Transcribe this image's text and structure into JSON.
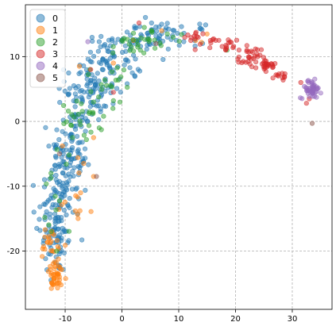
{
  "chart_data": {
    "type": "scatter",
    "title": "",
    "xlabel": "",
    "ylabel": "",
    "xlim": [
      -17,
      37
    ],
    "ylim": [
      -29,
      18
    ],
    "xticks": [
      -10,
      0,
      10,
      20,
      30
    ],
    "yticks": [
      -20,
      -10,
      0,
      10
    ],
    "grid": true,
    "grid_style": "dashed",
    "legend_position": "upper-left",
    "marker_alpha": 0.5,
    "series": [
      {
        "name": "0",
        "color": "#1f77b4",
        "clusters": [
          {
            "cx": -11.5,
            "cy": -15,
            "sx": 1.6,
            "sy": 4.5,
            "n": 120
          },
          {
            "cx": -9,
            "cy": -5,
            "sx": 1.8,
            "sy": 4,
            "n": 110
          },
          {
            "cx": -5.5,
            "cy": 5,
            "sx": 2.2,
            "sy": 2.5,
            "n": 90
          },
          {
            "cx": -1.5,
            "cy": 9.5,
            "sx": 2.5,
            "sy": 2,
            "n": 60
          },
          {
            "cx": 4.5,
            "cy": 13,
            "sx": 3,
            "sy": 1.2,
            "n": 55
          },
          {
            "cx": 11.5,
            "cy": 13.5,
            "sx": 1.5,
            "sy": 0.7,
            "n": 15
          }
        ],
        "points": [
          [
            -15.5,
            -14
          ],
          [
            -15,
            -16.5
          ],
          [
            -12.5,
            -24.5
          ],
          [
            -9,
            0
          ],
          [
            -7,
            3
          ],
          [
            -4,
            12.3
          ],
          [
            0,
            12.5
          ],
          [
            7,
            15
          ]
        ]
      },
      {
        "name": "1",
        "color": "#ff7f0e",
        "clusters": [
          {
            "cx": -11.5,
            "cy": -24,
            "sx": 0.9,
            "sy": 1.1,
            "n": 40
          },
          {
            "cx": -12.3,
            "cy": -19.5,
            "sx": 1.2,
            "sy": 2,
            "n": 25
          },
          {
            "cx": -8,
            "cy": -10,
            "sx": 1.5,
            "sy": 3.5,
            "n": 15
          }
        ],
        "points": [
          [
            -7.5,
            8.5
          ],
          [
            -5,
            -2.5
          ],
          [
            -5,
            -8.5
          ],
          [
            -1.5,
            9
          ],
          [
            2,
            12.5
          ],
          [
            7,
            14
          ],
          [
            13,
            12.5
          ],
          [
            14,
            12.2
          ],
          [
            15,
            13.5
          ]
        ]
      },
      {
        "name": "2",
        "color": "#2ca02c",
        "clusters": [
          {
            "cx": -7,
            "cy": 0,
            "sx": 1.8,
            "sy": 1.5,
            "n": 25
          },
          {
            "cx": -3,
            "cy": 6.5,
            "sx": 2,
            "sy": 2,
            "n": 20
          },
          {
            "cx": 3.5,
            "cy": 12.5,
            "sx": 2.2,
            "sy": 1,
            "n": 30
          },
          {
            "cx": -11.5,
            "cy": -12,
            "sx": 1.5,
            "sy": 5,
            "n": 12
          }
        ],
        "points": [
          [
            -12.5,
            -8
          ],
          [
            -11.5,
            -20
          ],
          [
            -5,
            3
          ],
          [
            -4,
            -1
          ],
          [
            -1.5,
            3.2
          ],
          [
            8,
            13.5
          ],
          [
            9,
            13
          ],
          [
            10.5,
            13.4
          ],
          [
            18.5,
            11
          ]
        ]
      },
      {
        "name": "3",
        "color": "#d62728",
        "clusters": [
          {
            "cx": 13.5,
            "cy": 13,
            "sx": 1.2,
            "sy": 0.5,
            "n": 15
          },
          {
            "cx": 18.5,
            "cy": 11.8,
            "sx": 1.2,
            "sy": 0.5,
            "n": 18
          },
          {
            "cx": 22.5,
            "cy": 9.8,
            "sx": 1,
            "sy": 0.8,
            "n": 28
          },
          {
            "cx": 25.5,
            "cy": 8.5,
            "sx": 0.8,
            "sy": 0.6,
            "n": 25
          },
          {
            "cx": 28,
            "cy": 7,
            "sx": 0.8,
            "sy": 0.4,
            "n": 10
          }
        ],
        "points": [
          [
            -1.5,
            4.5
          ],
          [
            -5.5,
            8
          ],
          [
            3,
            15.2
          ],
          [
            16.5,
            12.5
          ],
          [
            31.5,
            6
          ],
          [
            32.5,
            2.8
          ],
          [
            33,
            3.5
          ],
          [
            22,
            11
          ]
        ]
      },
      {
        "name": "4",
        "color": "#9467bd",
        "clusters": [
          {
            "cx": 33.3,
            "cy": 5,
            "sx": 0.9,
            "sy": 0.7,
            "n": 45
          }
        ],
        "points": [
          [
            -6,
            12.3
          ]
        ]
      },
      {
        "name": "5",
        "color": "#8c564b",
        "clusters": [],
        "points": [
          [
            33.5,
            -0.3
          ],
          [
            -4.5,
            -8.5
          ],
          [
            -11,
            -5
          ],
          [
            6,
            12
          ]
        ]
      }
    ]
  }
}
